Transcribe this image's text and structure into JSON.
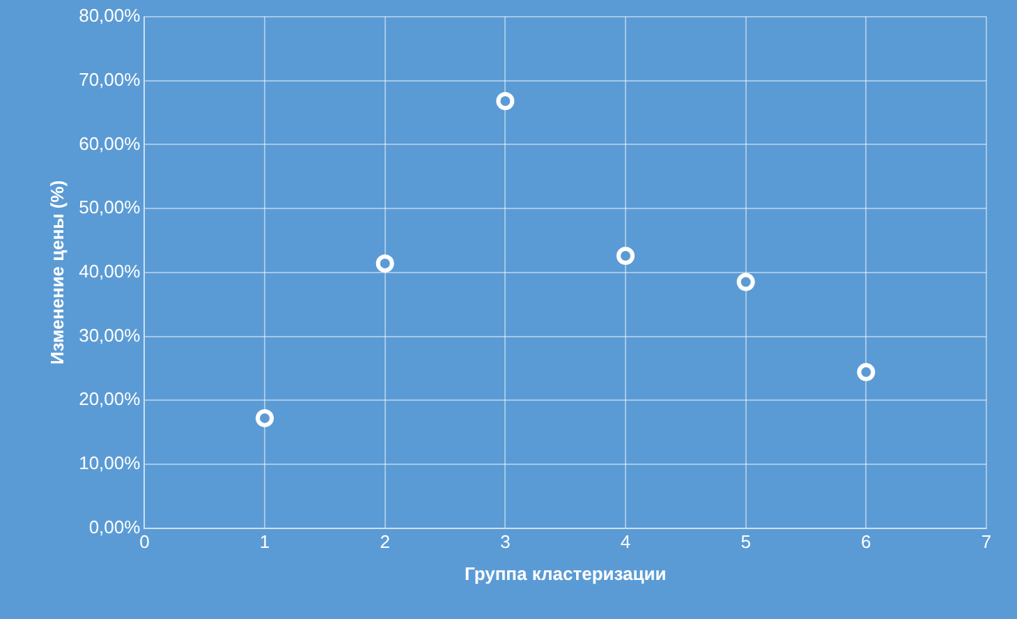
{
  "chart_data": {
    "type": "scatter",
    "xlabel": "Группа кластеризации",
    "ylabel": "Изменение цены (%)",
    "x": [
      1,
      2,
      3,
      4,
      5,
      6
    ],
    "series": [
      {
        "color": "#ffffff",
        "values": [
          17.2,
          41.4,
          66.8,
          42.6,
          38.5,
          24.4
        ]
      }
    ],
    "xlim": [
      0,
      7
    ],
    "xticks": [
      0,
      1,
      2,
      3,
      4,
      5,
      6,
      7
    ],
    "ylim": [
      0,
      80
    ],
    "yticks": [
      {
        "value": 0,
        "label": "0,00%"
      },
      {
        "value": 10,
        "label": "10,00%"
      },
      {
        "value": 20,
        "label": "20,00%"
      },
      {
        "value": 30,
        "label": "30,00%"
      },
      {
        "value": 40,
        "label": "40,00%"
      },
      {
        "value": 50,
        "label": "50,00%"
      },
      {
        "value": 60,
        "label": "60,00%"
      },
      {
        "value": 70,
        "label": "70,00%"
      },
      {
        "value": 80,
        "label": "80,00%"
      }
    ],
    "grid": true,
    "legend": false,
    "marker": "circle"
  }
}
